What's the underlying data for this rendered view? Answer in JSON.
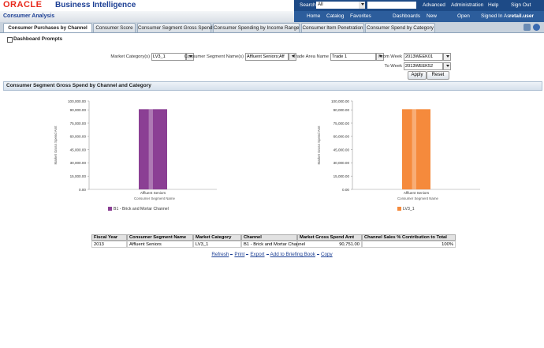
{
  "header": {
    "logo": "ORACLE",
    "title": "Business Intelligence",
    "search_label": "Search",
    "search_scope": "All",
    "top_links": [
      "Advanced",
      "Administration",
      "Help",
      "Sign Out"
    ],
    "nav": [
      "Home",
      "Catalog",
      "Favorites",
      "Dashboards",
      "New",
      "Open"
    ],
    "signed_in_label": "Signed In As",
    "user": "retail.user"
  },
  "dashboard": {
    "title": "Consumer Analysis",
    "tabs": [
      "Consumer Purchases by Channel",
      "Consumer Score",
      "Consumer Segment Gross Spend",
      "Consumer Spending by Income Range",
      "Consumer Item Penetration",
      "Consumer Spend by Category"
    ],
    "active_tab": 0
  },
  "prompts": {
    "title": "Dashboard Prompts",
    "fields": [
      {
        "label": "Market Category(s)",
        "value": "LV3_1"
      },
      {
        "label": "Consumer Segment Name(s)",
        "value": "Affluent Seniors;Aff"
      },
      {
        "label": "Trade Area Name",
        "value": "Trade 1"
      },
      {
        "label": "From Week",
        "value": "2013WEEK01"
      },
      {
        "label": "To Week",
        "value": "2013WEEK52"
      }
    ],
    "buttons": [
      "Apply",
      "Reset"
    ]
  },
  "section": {
    "title": "Consumer Segment Gross Spend by Channel and Category"
  },
  "chart_data": [
    {
      "type": "bar",
      "y_label": "Market Gross Spend Amt",
      "x_label": "Consumer Segment Name",
      "categories": [
        "Affluent Seniors"
      ],
      "series": [
        {
          "name": "B1 - Brick and Mortar Channel",
          "color": "#8b3f94",
          "values": [
            90751
          ]
        }
      ],
      "ylim": [
        0,
        100000
      ],
      "yticks": [
        {
          "value": 0,
          "label": "0.00"
        },
        {
          "value": 15000,
          "label": "15,000.00"
        },
        {
          "value": 30000,
          "label": "30,000.00"
        },
        {
          "value": 45000,
          "label": "45,000.00"
        },
        {
          "value": 60000,
          "label": "60,000.00"
        },
        {
          "value": 75000,
          "label": "75,000.00"
        },
        {
          "value": 90000,
          "label": "90,000.00"
        },
        {
          "value": 100000,
          "label": "100,000.00"
        }
      ],
      "grid": false
    },
    {
      "type": "bar",
      "y_label": "Market Gross Spend Amt",
      "x_label": "Consumer Segment Name",
      "categories": [
        "Affluent Seniors"
      ],
      "series": [
        {
          "name": "LV3_1",
          "color": "#f58a3c",
          "values": [
            90751
          ]
        }
      ],
      "ylim": [
        0,
        100000
      ],
      "yticks": [
        {
          "value": 0,
          "label": "0.00"
        },
        {
          "value": 15000,
          "label": "15,000.00"
        },
        {
          "value": 30000,
          "label": "30,000.00"
        },
        {
          "value": 45000,
          "label": "45,000.00"
        },
        {
          "value": 60000,
          "label": "60,000.00"
        },
        {
          "value": 75000,
          "label": "75,000.00"
        },
        {
          "value": 90000,
          "label": "90,000.00"
        },
        {
          "value": 100000,
          "label": "100,000.00"
        }
      ],
      "grid": false
    }
  ],
  "table": {
    "headers": [
      "Fiscal Year",
      "Consumer Segment Name",
      "Market Category",
      "Channel",
      "Market Gross Spend Amt",
      "Channel Sales % Contribution to Total"
    ],
    "rows": [
      [
        "2013",
        "Affluent Seniors",
        "LV3_1",
        "B1 - Brick and Mortar Channel",
        "90,751.00",
        "100%"
      ]
    ]
  },
  "links": [
    "Refresh",
    "Print",
    "Export",
    "Add to Briefing Book",
    "Copy"
  ]
}
